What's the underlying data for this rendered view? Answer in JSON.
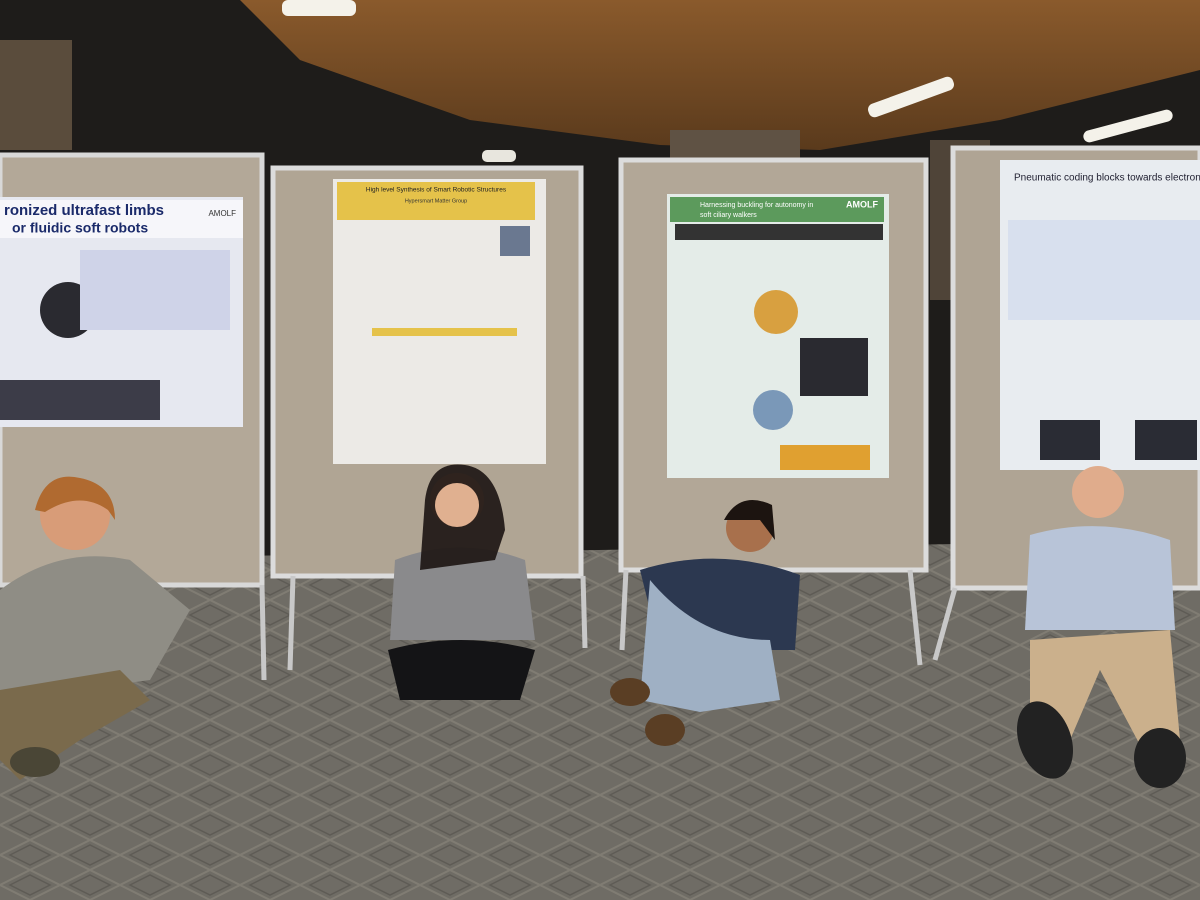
{
  "posters": [
    {
      "title": "ronized ultrafast limbs",
      "subtitle": "or fluidic soft robots",
      "logo": "AMOLF"
    },
    {
      "title": "High level Synthesis of Smart Robotic Structures",
      "subtitle": "Hypersmart Matter Group"
    },
    {
      "title": "Harnessing buckling for autonomy in",
      "subtitle": "soft ciliary walkers",
      "logo": "AMOLF"
    },
    {
      "title": "Pneumatic coding blocks towards electronics-fr"
    }
  ]
}
